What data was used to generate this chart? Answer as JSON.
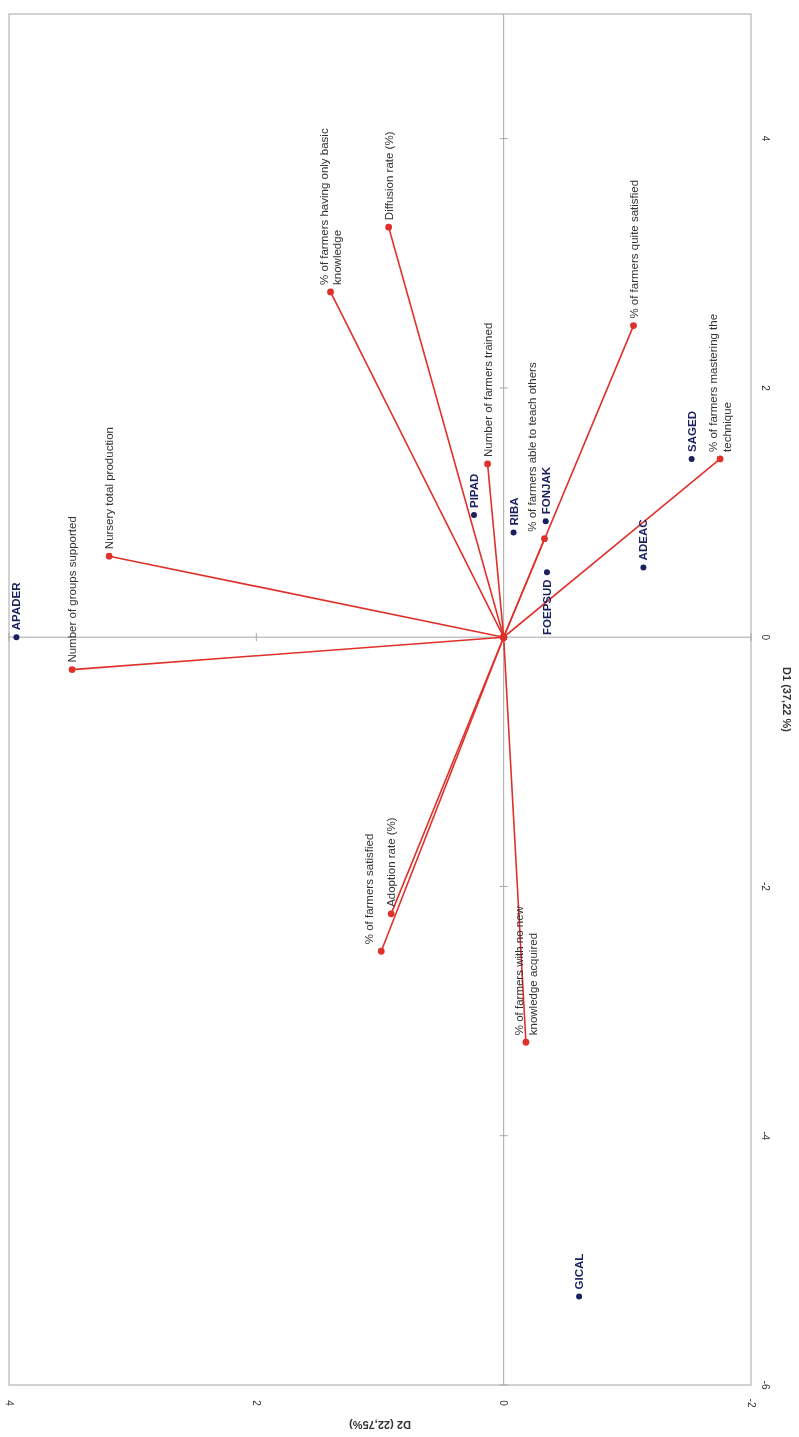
{
  "chart_data": {
    "type": "scatter",
    "xlabel": "D2 (22,75%)",
    "ylabel": "D1 (37,22 %)",
    "xlim": [
      4,
      -2
    ],
    "xticks": [
      4,
      2,
      0,
      -2
    ],
    "ylim": [
      -6,
      5
    ],
    "yticks": [
      -6,
      -4,
      -2,
      0,
      2,
      4
    ],
    "marker": "circle",
    "series": [
      {
        "type": "line",
        "name": "Number of groups supported",
        "color": "#e0302a",
        "x": [
          0,
          3.49
        ],
        "values": [
          0,
          -0.26
        ]
      },
      {
        "type": "line",
        "name": "Nursery total production",
        "color": "#e0302a",
        "x": [
          0,
          3.19
        ],
        "values": [
          0,
          0.65
        ]
      },
      {
        "type": "line",
        "name": "% of farmers having only basic knowledge",
        "color": "#e0302a",
        "x": [
          0,
          1.4
        ],
        "values": [
          0,
          2.77
        ]
      },
      {
        "type": "line",
        "name": "Diffusion rate (%)",
        "color": "#e0302a",
        "x": [
          0,
          0.93
        ],
        "values": [
          0,
          3.29
        ]
      },
      {
        "type": "line",
        "name": "Number of farmers trained",
        "color": "#e0302a",
        "x": [
          0,
          0.13
        ],
        "values": [
          0,
          1.39
        ]
      },
      {
        "type": "line",
        "name": "% of farmers able to teach others",
        "color": "#e0302a",
        "x": [
          0,
          -0.33
        ],
        "values": [
          0,
          0.79
        ]
      },
      {
        "type": "line",
        "name": "% of farmers quite satisfied",
        "color": "#e0302a",
        "x": [
          0,
          -1.05
        ],
        "values": [
          0,
          2.5
        ]
      },
      {
        "type": "line",
        "name": "% of farmers mastering the technique",
        "color": "#e0302a",
        "x": [
          0,
          -1.75
        ],
        "values": [
          0,
          1.43
        ]
      },
      {
        "type": "line",
        "name": "Adoption rate (%)",
        "color": "#e0302a",
        "x": [
          0,
          0.91
        ],
        "values": [
          0,
          -2.22
        ]
      },
      {
        "type": "line",
        "name": "% of farmers satisfied",
        "color": "#e0302a",
        "x": [
          0,
          0.99
        ],
        "values": [
          0,
          -2.52
        ]
      },
      {
        "type": "line",
        "name": "% of farmers with no new knowledge acquired",
        "color": "#e0302a",
        "x": [
          0,
          -0.18
        ],
        "values": [
          0,
          -3.25
        ]
      },
      {
        "name": "APADER",
        "color": "#1b1f5e",
        "x": [
          3.94
        ],
        "values": [
          0
        ]
      },
      {
        "name": "PIPAD",
        "color": "#1b1f5e",
        "x": [
          0.24
        ],
        "values": [
          0.98
        ]
      },
      {
        "name": "RIBA",
        "color": "#1b1f5e",
        "x": [
          -0.08
        ],
        "values": [
          0.84
        ]
      },
      {
        "name": "FONJAK",
        "color": "#1b1f5e",
        "x": [
          -0.34
        ],
        "values": [
          0.93
        ]
      },
      {
        "name": "FOEPSUD",
        "color": "#1b1f5e",
        "x": [
          -0.35
        ],
        "values": [
          0.52
        ]
      },
      {
        "name": "ADEAC",
        "color": "#1b1f5e",
        "x": [
          -1.13
        ],
        "values": [
          0.56
        ]
      },
      {
        "name": "SAGED",
        "color": "#1b1f5e",
        "x": [
          -1.52
        ],
        "values": [
          1.43
        ]
      },
      {
        "name": "GICAL",
        "color": "#1b1f5e",
        "x": [
          -0.61
        ],
        "values": [
          -5.29
        ]
      }
    ]
  }
}
